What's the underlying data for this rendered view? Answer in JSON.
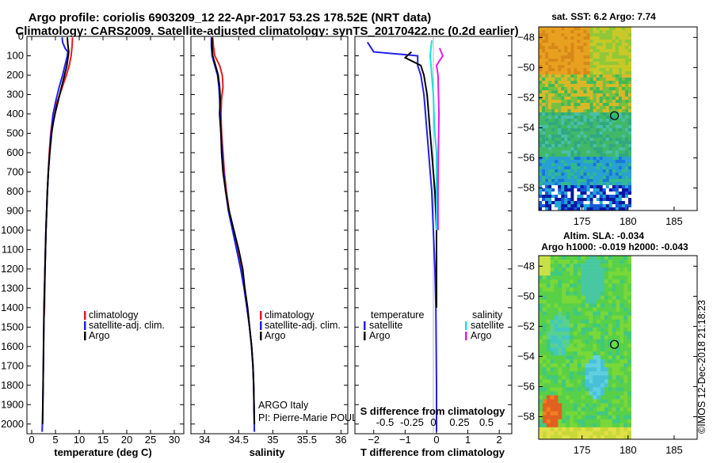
{
  "title_line1": "Argo profile: coriolis 6903209_12 22-Apr-2017 53.2S 178.52E (NRT data)",
  "title_line2": "Climatology: CARS2009. Satellite-adjusted climatology: synTS_20170422.nc (0.2d earlier)",
  "colors": {
    "climatology": "#e8191f",
    "satellite": "#1f1fe8",
    "argo": "#000000",
    "sat_salinity": "#19dede",
    "argo_salinity": "#e819e8"
  },
  "chart_data": [
    {
      "type": "line",
      "id": "temperature",
      "xlabel": "temperature (deg C)",
      "ylabel": "",
      "xlim": [
        -1,
        32
      ],
      "ylim": [
        2050,
        0
      ],
      "xticks": [
        0,
        5,
        10,
        15,
        20,
        25,
        30
      ],
      "yticks": [
        0,
        100,
        200,
        300,
        400,
        500,
        600,
        700,
        800,
        900,
        1000,
        1100,
        1200,
        1300,
        1400,
        1500,
        1600,
        1700,
        1800,
        1900,
        2000
      ],
      "legend": [
        "climatology",
        "satellite-adj. clim.",
        "Argo"
      ],
      "legend_position": "lower-right",
      "series": [
        {
          "name": "climatology",
          "color": "#e8191f",
          "x": [
            8.6,
            8.5,
            8.3,
            7.9,
            7.3,
            6.6,
            5.9,
            5.2,
            4.5,
            4.0,
            3.7,
            3.5,
            3.3,
            3.0,
            2.8,
            2.7,
            2.6
          ],
          "y": [
            5,
            50,
            100,
            150,
            200,
            250,
            300,
            350,
            400,
            500,
            600,
            700,
            800,
            1000,
            1200,
            1400,
            1450
          ]
        },
        {
          "name": "satellite-adj. clim.",
          "color": "#1f1fe8",
          "x": [
            6.4,
            6.5,
            7.0,
            7.6,
            7.5,
            7.0,
            6.5,
            5.8,
            5.1,
            4.5,
            4.1,
            3.8,
            3.5,
            3.3,
            3.0,
            2.8,
            2.6,
            2.5,
            2.4,
            2.3,
            2.2
          ],
          "y": [
            5,
            30,
            60,
            80,
            100,
            150,
            200,
            260,
            330,
            400,
            500,
            600,
            700,
            800,
            1000,
            1200,
            1400,
            1600,
            1800,
            1950,
            2040
          ]
        },
        {
          "name": "Argo",
          "color": "#000000",
          "x": [
            7.5,
            7.6,
            7.7,
            7.8,
            7.7,
            7.4,
            6.9,
            6.4,
            5.9,
            5.4,
            4.9,
            4.5,
            4.2,
            3.8,
            3.5,
            3.3,
            3.0,
            2.8,
            2.6,
            2.5,
            2.4,
            2.3
          ],
          "y": [
            5,
            40,
            60,
            80,
            100,
            150,
            200,
            250,
            300,
            350,
            400,
            450,
            500,
            600,
            700,
            800,
            1000,
            1200,
            1400,
            1600,
            1800,
            2000
          ]
        }
      ]
    },
    {
      "type": "line",
      "id": "salinity",
      "xlabel": "salinity",
      "ylabel": "",
      "xlim": [
        33.8,
        36.1
      ],
      "ylim": [
        2050,
        0
      ],
      "xticks": [
        34,
        34.5,
        35,
        35.5,
        36
      ],
      "legend": [
        "climatology",
        "satellite-adj. clim.",
        "Argo"
      ],
      "legend_position": "lower-right",
      "annotations": [
        "ARGO Italy",
        "PI: Pierre-Marie POULAIN"
      ],
      "series": [
        {
          "name": "climatology",
          "color": "#e8191f",
          "x": [
            34.12,
            34.13,
            34.15,
            34.22,
            34.26,
            34.27,
            34.25,
            34.24,
            34.25,
            34.27,
            34.29,
            34.32,
            34.36,
            34.42,
            34.48,
            34.54,
            34.59,
            34.63,
            34.66,
            34.69,
            34.71,
            34.72,
            34.73
          ],
          "y": [
            5,
            50,
            100,
            150,
            200,
            260,
            320,
            400,
            500,
            600,
            700,
            800,
            900,
            1000,
            1100,
            1200,
            1300,
            1400,
            1500,
            1600,
            1700,
            1800,
            2000
          ]
        },
        {
          "name": "satellite-adj. clim.",
          "color": "#1f1fe8",
          "x": [
            34.1,
            34.1,
            34.11,
            34.15,
            34.19,
            34.21,
            34.22,
            34.23,
            34.24,
            34.26,
            34.28,
            34.31,
            34.35,
            34.41,
            34.47,
            34.53,
            34.58,
            34.62,
            34.66,
            34.69,
            34.71,
            34.72,
            34.73
          ],
          "y": [
            5,
            50,
            100,
            150,
            200,
            260,
            320,
            400,
            500,
            600,
            700,
            800,
            900,
            1000,
            1100,
            1200,
            1300,
            1400,
            1500,
            1600,
            1700,
            1800,
            2040
          ]
        },
        {
          "name": "Argo",
          "color": "#000000",
          "x": [
            34.11,
            34.11,
            34.12,
            34.16,
            34.2,
            34.22,
            34.23,
            34.22,
            34.24,
            34.25,
            34.27,
            34.31,
            34.36,
            34.43,
            34.5,
            34.56,
            34.59,
            34.63,
            34.66,
            34.69,
            34.71,
            34.72,
            34.73
          ],
          "y": [
            5,
            50,
            100,
            150,
            200,
            260,
            320,
            400,
            500,
            600,
            700,
            800,
            900,
            1000,
            1100,
            1200,
            1300,
            1400,
            1500,
            1600,
            1700,
            1800,
            2000
          ]
        }
      ]
    },
    {
      "type": "line",
      "id": "difference",
      "xlabel": "T difference from climatology",
      "xlabel_top": "S difference from climatology",
      "xlim": [
        -2.6,
        2.4
      ],
      "ylim": [
        2050,
        0
      ],
      "xticks": [
        -2,
        -1,
        0,
        1,
        2
      ],
      "xticks_s": [
        "-0.5",
        "-0.25",
        "0",
        "0.25",
        "0.5"
      ],
      "legend_left_title": "temperature",
      "legend_right_title": "salinity",
      "legend_left": [
        "satellite",
        "Argo"
      ],
      "legend_right": [
        "satellite",
        "Argo"
      ],
      "series": [
        {
          "name": "satellite",
          "color": "#1f1fe8",
          "x": [
            -2.2,
            -2.0,
            -0.6,
            -0.6,
            -0.5,
            -0.4,
            -0.35,
            -0.3,
            -0.25,
            -0.2,
            -0.15,
            -0.1,
            -0.05,
            -0.02,
            0,
            0
          ],
          "y": [
            30,
            80,
            100,
            150,
            200,
            300,
            400,
            500,
            600,
            700,
            800,
            1000,
            1200,
            1400,
            1800,
            2040
          ]
        },
        {
          "name": "Argo",
          "color": "#000000",
          "x": [
            -0.8,
            -1.0,
            -0.5,
            -0.4,
            -0.3,
            -0.25,
            -0.2,
            -0.15,
            -0.1,
            -0.05,
            0,
            0
          ],
          "y": [
            80,
            110,
            150,
            200,
            300,
            400,
            500,
            600,
            700,
            800,
            1000,
            1400
          ]
        },
        {
          "name": "satellite",
          "color": "#19dede",
          "x": [
            -0.15,
            -0.2,
            -0.15,
            -0.1,
            -0.08,
            -0.05,
            0,
            0
          ],
          "y": [
            20,
            100,
            200,
            300,
            400,
            500,
            600,
            1000
          ]
        },
        {
          "name": "Argo",
          "color": "#e819e8",
          "x": [
            0.1,
            0.2,
            0.0,
            0.05,
            0.08,
            0.06,
            0.05,
            0.05
          ],
          "y": [
            60,
            100,
            150,
            200,
            400,
            600,
            800,
            1000
          ]
        }
      ]
    },
    {
      "type": "heatmap",
      "id": "sst-map",
      "title": "sat. SST: 6.2 Argo: 7.74",
      "xticks": [
        175,
        180,
        185
      ],
      "yticks": [
        -48,
        -50,
        -52,
        -54,
        -56,
        -58
      ],
      "xlim": [
        170.3,
        187.5
      ],
      "ylim": [
        -59.5,
        -47.3
      ],
      "data_extent": [
        170.3,
        180.2
      ],
      "marker": {
        "lon": 178.52,
        "lat": -53.2
      }
    },
    {
      "type": "heatmap",
      "id": "sla-map",
      "title": "Altim. SLA: -0.034",
      "subtitle": "Argo h1000: -0.019 h2000: -0.043",
      "xticks": [
        175,
        180,
        185
      ],
      "yticks": [
        -48,
        -50,
        -52,
        -54,
        -56,
        -58
      ],
      "xlim": [
        170.3,
        187.5
      ],
      "ylim": [
        -59.5,
        -47.3
      ],
      "data_extent": [
        170.3,
        180.2
      ],
      "marker": {
        "lon": 178.52,
        "lat": -53.2
      }
    }
  ],
  "credit": "©IMOS 12-Dec-2018 21:18:23"
}
